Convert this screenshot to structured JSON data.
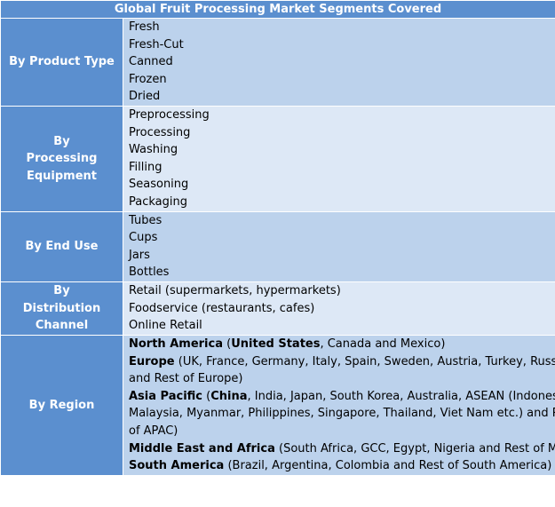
{
  "title": "Global Fruit Processing Market Segments Covered",
  "segments": {
    "product_type": {
      "label": "By Product Type",
      "items": [
        "Fresh",
        "Fresh-Cut",
        "Canned",
        "Frozen",
        "Dried"
      ]
    },
    "processing_equipment": {
      "label": "By Processing Equipment",
      "items": [
        "Preprocessing",
        "Processing",
        "Washing",
        "Filling",
        "Seasoning",
        "Packaging"
      ]
    },
    "end_use": {
      "label": "By End Use",
      "items": [
        "Tubes",
        "Cups",
        "Jars",
        "Bottles"
      ]
    },
    "distribution_channel": {
      "label": "By Distribution Channel",
      "items": [
        "Retail (supermarkets, hypermarkets)",
        "Foodservice (restaurants, cafes)",
        "Online Retail"
      ]
    },
    "region": {
      "label": "By Region",
      "north_america": {
        "name": "North America",
        "open": " (",
        "lead": "United States",
        "rest": ", Canada and Mexico)"
      },
      "europe": {
        "name": "Europe",
        "line1": " (UK, France, Germany, Italy, Spain, Sweden, Austria, Turkey, Russia",
        "line2": "and Rest of Europe)"
      },
      "asia_pacific": {
        "name": "Asia Pacific",
        "open": " (",
        "lead": "China",
        "line1_rest": ", India, Japan, South Korea, Australia, ASEAN (Indonesia,",
        "line2": "Malaysia, Myanmar, Philippines, Singapore, Thailand, Viet Nam etc.) and Rest",
        "line3": "of APAC)"
      },
      "mea": {
        "name": "Middle East and Africa",
        "rest": " (South Africa, GCC, Egypt, Nigeria and Rest of MEA)"
      },
      "south_america": {
        "name": "South America",
        "rest": " (Brazil, Argentina, Colombia and Rest of South America)"
      }
    }
  }
}
